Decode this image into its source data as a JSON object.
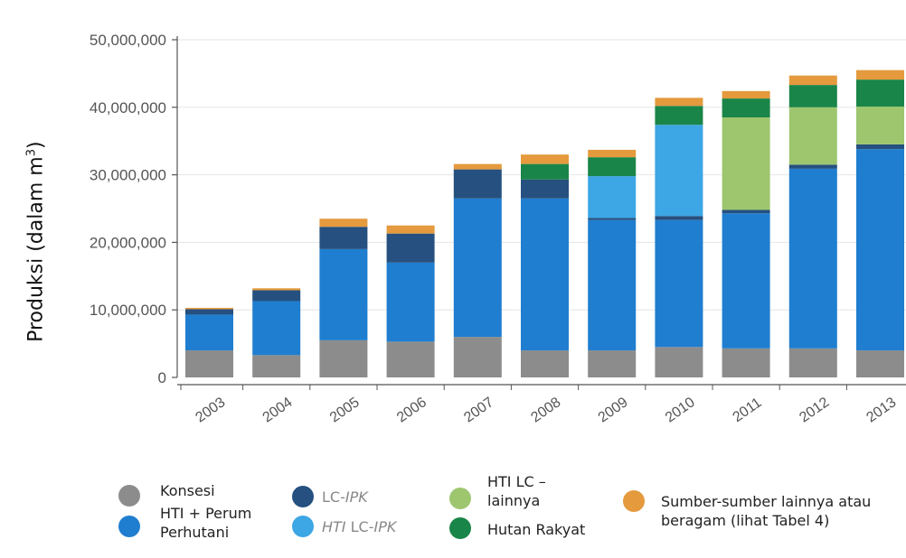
{
  "chart_data": {
    "type": "bar",
    "stacked": true,
    "ylabel_main": "Produksi (dalam m",
    "ylabel_sup": "3",
    "ylabel_close": ")",
    "ylim": [
      0,
      50000000
    ],
    "yticks": [
      "0",
      "10,000,000",
      "20,000,000",
      "30,000,000",
      "40,000,000",
      "50,000,000"
    ],
    "ytick_values": [
      0,
      10000000,
      20000000,
      30000000,
      40000000,
      50000000
    ],
    "categories": [
      "2003",
      "2004",
      "2005",
      "2006",
      "2007",
      "2008",
      "2009",
      "2010",
      "2011",
      "2012",
      "2013"
    ],
    "series": [
      {
        "key": "konsesi",
        "color": "#8c8c8c",
        "values": [
          4000000,
          3300000,
          5500000,
          5300000,
          6000000,
          4000000,
          4000000,
          4500000,
          4300000,
          4300000,
          4000000
        ]
      },
      {
        "key": "hti_perum",
        "color": "#1f7ecf",
        "values": [
          5300000,
          8000000,
          13500000,
          11700000,
          20500000,
          22500000,
          19300000,
          18800000,
          20000000,
          26600000,
          29800000
        ]
      },
      {
        "key": "lc_ipk",
        "color": "#25507f",
        "values": [
          800000,
          1600000,
          3300000,
          4300000,
          4300000,
          2800000,
          300000,
          600000,
          500000,
          600000,
          700000
        ]
      },
      {
        "key": "hti_lc_ipk",
        "color": "#3da6e5",
        "values": [
          0,
          0,
          0,
          0,
          0,
          0,
          6200000,
          13500000,
          0,
          0,
          0
        ]
      },
      {
        "key": "hti_lc_lainnya",
        "color": "#9dc66f",
        "values": [
          0,
          0,
          0,
          0,
          0,
          0,
          0,
          0,
          13700000,
          8500000,
          5600000
        ]
      },
      {
        "key": "hutan_rakyat",
        "color": "#1a8548",
        "values": [
          0,
          0,
          0,
          0,
          0,
          2300000,
          2800000,
          2800000,
          2800000,
          3300000,
          4000000
        ]
      },
      {
        "key": "lainnya",
        "color": "#e49a3d",
        "values": [
          200000,
          300000,
          1200000,
          1200000,
          800000,
          1400000,
          1100000,
          1200000,
          1100000,
          1400000,
          1400000
        ]
      }
    ],
    "legend": {
      "konsesi": "Konsesi",
      "hti_perum_1": "HTI + Perum",
      "hti_perum_2": "Perhutani",
      "lc_ipk_a": "LC-",
      "lc_ipk_b": "IPK",
      "hti_lc_ipk_a": "HTI",
      "hti_lc_ipk_b": " LC-",
      "hti_lc_ipk_c": "IPK",
      "hti_lc_lainnya_1": "HTI  LC –",
      "hti_lc_lainnya_2": "lainnya",
      "hutan_rakyat": "Hutan Rakyat",
      "lainnya_1": "Sumber-sumber lainnya atau",
      "lainnya_2": "beragam (lihat Tabel 4)"
    },
    "colors": {
      "konsesi": "#8c8c8c",
      "hti_perum": "#1f7ecf",
      "lc_ipk": "#25507f",
      "hti_lc_ipk": "#3da6e5",
      "hti_lc_lainnya": "#9dc66f",
      "hutan_rakyat": "#1a8548",
      "lainnya": "#e49a3d"
    }
  }
}
